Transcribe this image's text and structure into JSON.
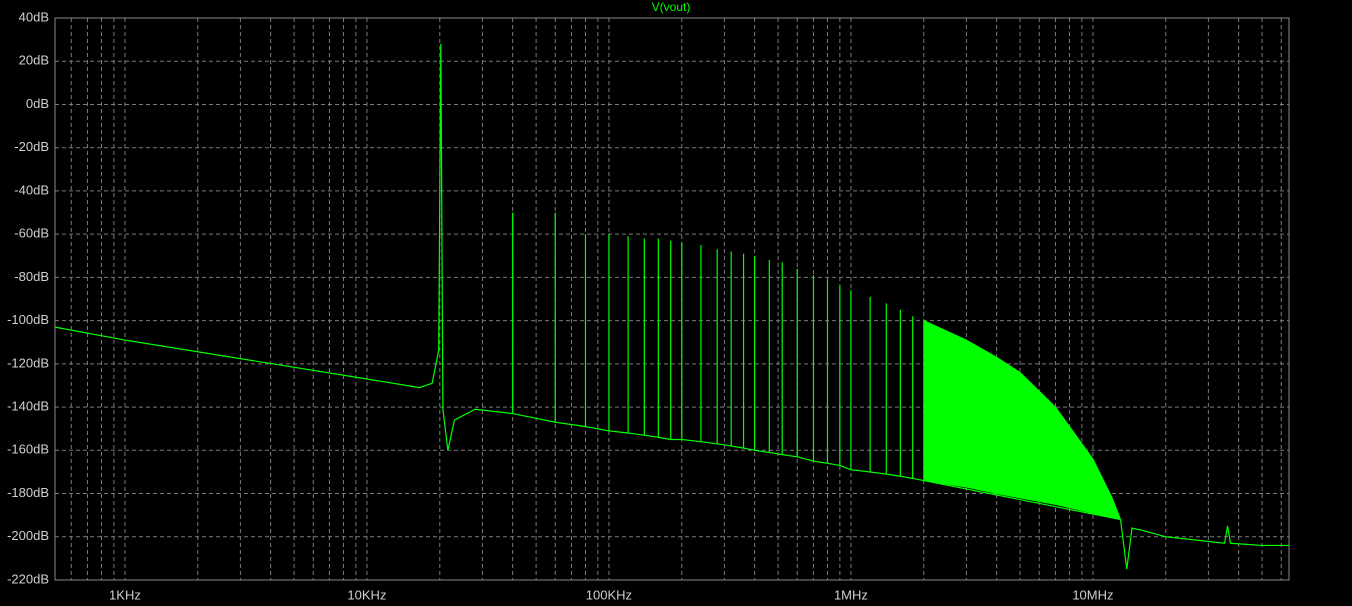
{
  "chart_data": {
    "type": "line",
    "title": "V(vout)",
    "log_x": true,
    "grid": true,
    "xlim": [
      514,
      64600000
    ],
    "ylim": [
      -220,
      40
    ],
    "xticks": [
      {
        "value": 1000,
        "label": "1KHz"
      },
      {
        "value": 10000,
        "label": "10KHz"
      },
      {
        "value": 100000,
        "label": "100KHz"
      },
      {
        "value": 1000000,
        "label": "1MHz"
      },
      {
        "value": 10000000,
        "label": "10MHz"
      }
    ],
    "xminorticks": [
      600,
      700,
      800,
      900,
      2000,
      3000,
      4000,
      5000,
      6000,
      7000,
      8000,
      9000,
      20000,
      30000,
      40000,
      50000,
      60000,
      70000,
      80000,
      90000,
      200000,
      300000,
      400000,
      500000,
      600000,
      700000,
      800000,
      900000,
      2000000,
      3000000,
      4000000,
      5000000,
      6000000,
      7000000,
      8000000,
      9000000,
      20000000,
      30000000,
      40000000,
      50000000,
      60000000
    ],
    "yticks": [
      {
        "value": 40,
        "label": "40dB"
      },
      {
        "value": 20,
        "label": "20dB"
      },
      {
        "value": 0,
        "label": "0dB"
      },
      {
        "value": -20,
        "label": "-20dB"
      },
      {
        "value": -40,
        "label": "-40dB"
      },
      {
        "value": -60,
        "label": "-60dB"
      },
      {
        "value": -80,
        "label": "-80dB"
      },
      {
        "value": -100,
        "label": "-100dB"
      },
      {
        "value": -120,
        "label": "-120dB"
      },
      {
        "value": -140,
        "label": "-140dB"
      },
      {
        "value": -160,
        "label": "-160dB"
      },
      {
        "value": -180,
        "label": "-180dB"
      },
      {
        "value": -200,
        "label": "-200dB"
      },
      {
        "value": -220,
        "label": "-220dB"
      }
    ],
    "x": [
      514,
      1000,
      10000,
      16500,
      18600,
      19800,
      20200,
      20600,
      21600,
      23000,
      28000,
      40000,
      40000,
      40000,
      60000,
      60000,
      60000,
      80000,
      80000,
      80000,
      100000,
      100000,
      100000,
      120000,
      120000,
      120000,
      140000,
      140000,
      140000,
      160000,
      160000,
      160000,
      180000,
      180000,
      180000,
      200000,
      200000,
      200000,
      240000,
      240000,
      240000,
      280000,
      280000,
      280000,
      320000,
      320000,
      320000,
      360000,
      360000,
      360000,
      400000,
      400000,
      400000,
      460000,
      460000,
      460000,
      520000,
      520000,
      520000,
      600000,
      600000,
      600000,
      700000,
      700000,
      700000,
      800000,
      800000,
      800000,
      900000,
      900000,
      900000,
      1000000,
      1000000,
      1000000,
      1200000,
      1200000,
      1200000,
      1400000,
      1400000,
      1400000,
      1600000,
      1600000,
      1600000,
      1800000,
      1800000,
      1800000,
      2000000,
      13000000,
      13800000,
      14500000,
      16000000,
      20000000,
      35000000,
      36000000,
      37000000,
      50000000,
      64600000
    ],
    "series": [
      {
        "color": "#00ff00",
        "values": [
          -103,
          -109,
          -127,
          -131,
          -129,
          -113.6,
          28,
          -141,
          -160,
          -146,
          -141,
          -143,
          -50,
          -143,
          -147,
          -50,
          -147,
          -149,
          -60,
          -149,
          -151,
          -60,
          -151,
          -152,
          -61,
          -152,
          -153,
          -62,
          -153,
          -154,
          -62,
          -154,
          -155,
          -63,
          -155,
          -155,
          -64,
          -155,
          -156,
          -65,
          -156,
          -157,
          -67,
          -157,
          -158,
          -68,
          -158,
          -159,
          -69,
          -159,
          -160,
          -70,
          -160,
          -161,
          -72,
          -161,
          -162,
          -73,
          -162,
          -163,
          -76,
          -163,
          -165,
          -79,
          -165,
          -166,
          -81,
          -166,
          -167,
          -84,
          -167,
          -169,
          -86,
          -169,
          -170,
          -89,
          -170,
          -171,
          -92,
          -171,
          -172,
          -95,
          -172,
          -173,
          -98,
          -173,
          -174,
          -192,
          -215,
          -196,
          -197,
          -200,
          -203,
          -195,
          -203,
          -204,
          -204
        ]
      }
    ],
    "band": {
      "color": "#00ff00",
      "x": [
        2000000,
        3000000,
        4000000,
        5000000,
        7000000,
        10000000,
        12000000,
        13000000
      ],
      "high": [
        -100,
        -109,
        -117,
        -124,
        -140,
        -164,
        -182,
        -192
      ],
      "low": [
        -174,
        -177,
        -180,
        -182,
        -185,
        -189,
        -191,
        -192
      ]
    }
  }
}
